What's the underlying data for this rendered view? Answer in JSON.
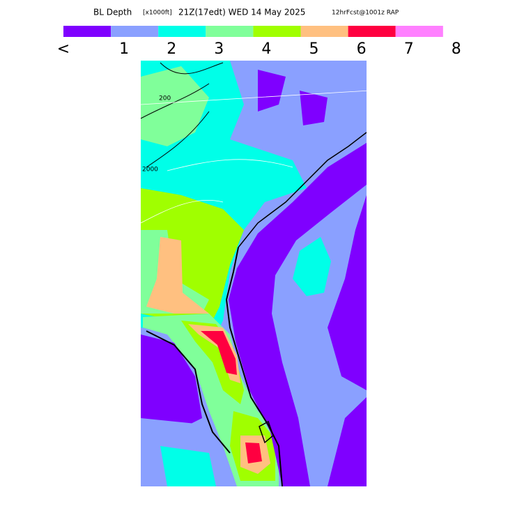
{
  "header": {
    "title_parts": [
      "BL Depth",
      "[x1000ft]",
      "21Z(17edt) WED 14 May 2025",
      "12hrFcst@1001z RAP"
    ]
  },
  "colorbar": {
    "labels": [
      "<",
      "1",
      "2",
      "3",
      "4",
      "5",
      "6",
      "7",
      "8"
    ],
    "colors": [
      "#7f00ff",
      "#8aa0ff",
      "#00ffe8",
      "#80ff9a",
      "#a0ff00",
      "#ffc080",
      "#ff0040",
      "#ff80ff"
    ]
  },
  "map": {
    "contour_labels": [
      "2000",
      "200"
    ]
  }
}
